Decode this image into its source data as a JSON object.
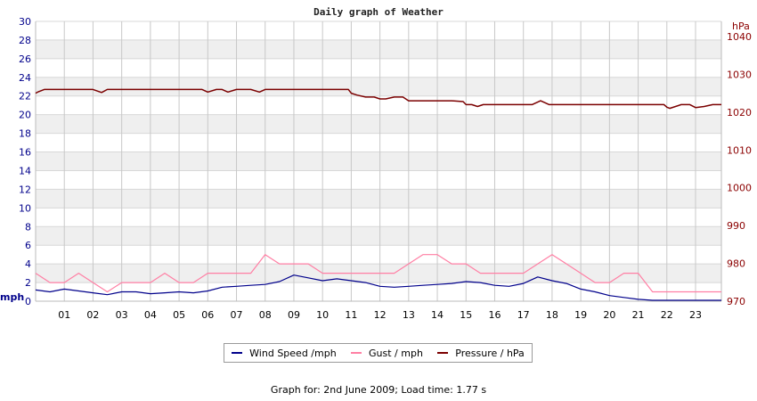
{
  "chart_data": {
    "type": "line",
    "title": "Daily graph of Weather",
    "left_axis": {
      "unit": "mph",
      "range": [
        0,
        30
      ],
      "ticks": [
        0,
        2,
        4,
        6,
        8,
        10,
        12,
        14,
        16,
        18,
        20,
        22,
        24,
        26,
        28,
        30
      ]
    },
    "right_axis": {
      "unit": "hPa",
      "range": [
        970,
        1044
      ],
      "ticks": [
        970,
        980,
        990,
        1000,
        1010,
        1020,
        1030,
        1040
      ]
    },
    "x_axis": {
      "range": [
        0,
        23.9
      ],
      "tick_labels": [
        "01",
        "02",
        "03",
        "04",
        "05",
        "06",
        "07",
        "08",
        "09",
        "10",
        "11",
        "12",
        "13",
        "14",
        "15",
        "16",
        "17",
        "18",
        "19",
        "20",
        "21",
        "22",
        "23"
      ]
    },
    "grid": true,
    "legend_position": "bottom-center",
    "series": [
      {
        "name": "Wind Speed /mph",
        "color": "#00008b",
        "axis": "left",
        "x": [
          0,
          0.5,
          1,
          1.5,
          2,
          2.5,
          3,
          3.5,
          4,
          4.5,
          5,
          5.5,
          6,
          6.5,
          7,
          7.5,
          8,
          8.5,
          9,
          9.5,
          10,
          10.5,
          11,
          11.5,
          12,
          12.5,
          13,
          13.5,
          14,
          14.5,
          15,
          15.5,
          16,
          16.5,
          17,
          17.5,
          18,
          18.5,
          19,
          19.5,
          20,
          20.5,
          21,
          21.5,
          22,
          22.5,
          23,
          23.9
        ],
        "values": [
          1.2,
          1.0,
          1.3,
          1.1,
          0.9,
          0.7,
          1.0,
          1.0,
          0.8,
          0.9,
          1.0,
          0.9,
          1.1,
          1.5,
          1.6,
          1.7,
          1.8,
          2.1,
          2.8,
          2.5,
          2.2,
          2.4,
          2.2,
          2.0,
          1.6,
          1.5,
          1.6,
          1.7,
          1.8,
          1.9,
          2.1,
          2.0,
          1.7,
          1.6,
          1.9,
          2.6,
          2.2,
          1.9,
          1.3,
          1.0,
          0.6,
          0.4,
          0.2,
          0.1,
          0.1,
          0.1,
          0.1,
          0.1
        ]
      },
      {
        "name": "Gust / mph",
        "color": "#ff7fa4",
        "axis": "left",
        "x": [
          0,
          0.5,
          1,
          1.5,
          2,
          2.5,
          3,
          3.5,
          4,
          4.5,
          5,
          5.5,
          6,
          6.5,
          7,
          7.5,
          8,
          8.5,
          9,
          9.5,
          10,
          10.5,
          11,
          11.5,
          12,
          12.5,
          13,
          13.5,
          14,
          14.5,
          15,
          15.5,
          16,
          16.5,
          17,
          17.5,
          18,
          18.5,
          19,
          19.5,
          20,
          20.5,
          21,
          21.5,
          22,
          22.5,
          23,
          23.9
        ],
        "values": [
          3,
          2,
          2,
          3,
          2,
          1,
          2,
          2,
          2,
          3,
          2,
          2,
          3,
          3,
          3,
          3,
          5,
          4,
          4,
          4,
          3,
          3,
          3,
          3,
          3,
          3,
          4,
          5,
          5,
          4,
          4,
          3,
          3,
          3,
          3,
          4,
          5,
          4,
          3,
          2,
          2,
          3,
          3,
          1,
          1,
          1,
          1,
          1
        ]
      },
      {
        "name": "Pressure / hPa",
        "color": "#7b0000",
        "axis": "right",
        "x": [
          0,
          0.1,
          0.3,
          1,
          1.5,
          2,
          2.3,
          2.5,
          3,
          4,
          5,
          5.8,
          6,
          6.3,
          6.5,
          6.7,
          7,
          7.5,
          7.8,
          8,
          9,
          10,
          10.9,
          11,
          11.2,
          11.5,
          11.8,
          12,
          12.2,
          12.5,
          12.8,
          13,
          13.5,
          14,
          14.5,
          14.9,
          15,
          15.2,
          15.4,
          15.6,
          16,
          17,
          17.3,
          17.6,
          17.9,
          18,
          19,
          20,
          21,
          21.5,
          21.9,
          22,
          22.1,
          22.3,
          22.5,
          22.7,
          22.8,
          23,
          23.3,
          23.6,
          23.9
        ],
        "values": [
          1025,
          1025.4,
          1026,
          1026,
          1026,
          1026,
          1025.2,
          1026,
          1026,
          1026,
          1026,
          1026,
          1025.3,
          1026,
          1026,
          1025.3,
          1026,
          1026,
          1025.3,
          1026,
          1026,
          1026,
          1026,
          1025,
          1024.5,
          1024,
          1024,
          1023.5,
          1023.5,
          1024,
          1024,
          1023,
          1023,
          1023,
          1023,
          1022.8,
          1022,
          1022,
          1021.5,
          1022,
          1022,
          1022,
          1022,
          1023,
          1022,
          1022,
          1022,
          1022,
          1022,
          1022,
          1022,
          1021.3,
          1021,
          1021.5,
          1022,
          1022,
          1022,
          1021.2,
          1021.5,
          1022,
          1022
        ]
      }
    ]
  },
  "footer": "Graph for: 2nd June 2009; Load time: 1.77 s"
}
